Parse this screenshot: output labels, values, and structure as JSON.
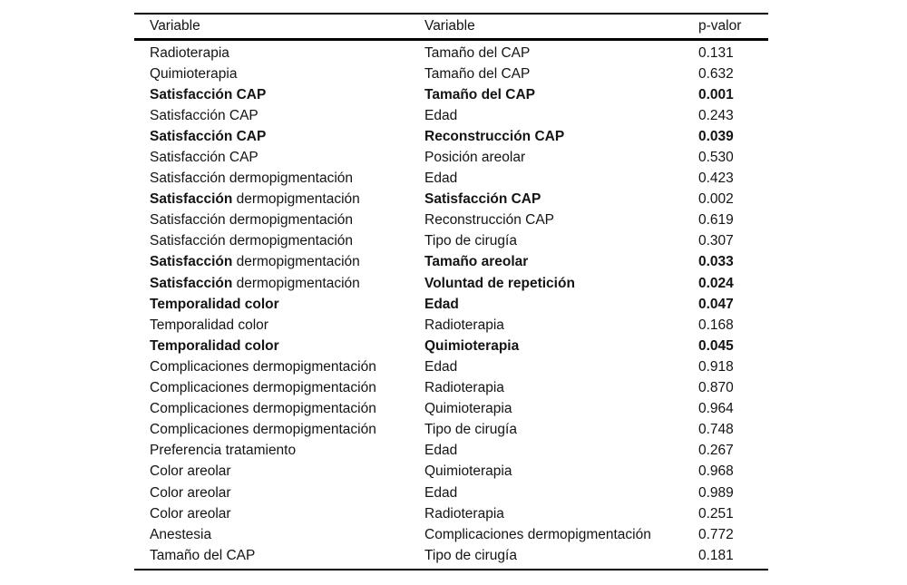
{
  "table": {
    "headers": [
      "Variable",
      "Variable",
      "p-valor"
    ],
    "rows": [
      {
        "col1": [
          [
            "Radioterapia",
            false
          ]
        ],
        "col2": [
          [
            "Tamaño del CAP",
            false
          ]
        ],
        "p": [
          [
            "0.131",
            false
          ]
        ]
      },
      {
        "col1": [
          [
            "Quimioterapia",
            false
          ]
        ],
        "col2": [
          [
            "Tamaño del CAP",
            false
          ]
        ],
        "p": [
          [
            "0.632",
            false
          ]
        ]
      },
      {
        "col1": [
          [
            "Satisfacción CAP",
            true
          ]
        ],
        "col2": [
          [
            "Tamaño del CAP",
            true
          ]
        ],
        "p": [
          [
            "0.001",
            true
          ]
        ]
      },
      {
        "col1": [
          [
            "Satisfacción CAP",
            false
          ]
        ],
        "col2": [
          [
            "Edad",
            false
          ]
        ],
        "p": [
          [
            "0.243",
            false
          ]
        ]
      },
      {
        "col1": [
          [
            "Satisfacción CAP",
            true
          ]
        ],
        "col2": [
          [
            "Reconstrucción CAP",
            true
          ]
        ],
        "p": [
          [
            "0.039",
            true
          ]
        ]
      },
      {
        "col1": [
          [
            "Satisfacción CAP",
            false
          ]
        ],
        "col2": [
          [
            "Posición areolar",
            false
          ]
        ],
        "p": [
          [
            "0.530",
            false
          ]
        ]
      },
      {
        "col1": [
          [
            "Satisfacción dermopigmentación",
            false
          ]
        ],
        "col2": [
          [
            "Edad",
            false
          ]
        ],
        "p": [
          [
            "0.423",
            false
          ]
        ]
      },
      {
        "col1": [
          [
            "Satisfacción",
            true
          ],
          [
            " dermopigmentación",
            false
          ]
        ],
        "col2": [
          [
            "Satisfacción CAP",
            true
          ]
        ],
        "p": [
          [
            "0.002",
            false
          ]
        ]
      },
      {
        "col1": [
          [
            "Satisfacción dermopigmentación",
            false
          ]
        ],
        "col2": [
          [
            "Reconstrucción CAP",
            false
          ]
        ],
        "p": [
          [
            "0.619",
            false
          ]
        ]
      },
      {
        "col1": [
          [
            "Satisfacción dermopigmentación",
            false
          ]
        ],
        "col2": [
          [
            "Tipo de cirugía",
            false
          ]
        ],
        "p": [
          [
            "0.307",
            false
          ]
        ]
      },
      {
        "col1": [
          [
            "Satisfacción",
            true
          ],
          [
            " dermopigmentación",
            false
          ]
        ],
        "col2": [
          [
            "Tamaño areolar",
            true
          ]
        ],
        "p": [
          [
            "0.033",
            true
          ]
        ]
      },
      {
        "col1": [
          [
            "Satisfacción",
            true
          ],
          [
            " dermopigmentación",
            false
          ]
        ],
        "col2": [
          [
            "Voluntad de repetición",
            true
          ]
        ],
        "p": [
          [
            "0.024",
            true
          ]
        ]
      },
      {
        "col1": [
          [
            "Temporalidad color",
            true
          ]
        ],
        "col2": [
          [
            "Edad",
            true
          ]
        ],
        "p": [
          [
            "0.047",
            true
          ]
        ]
      },
      {
        "col1": [
          [
            "Temporalidad color",
            false
          ]
        ],
        "col2": [
          [
            "Radioterapia",
            false
          ]
        ],
        "p": [
          [
            "0.168",
            false
          ]
        ]
      },
      {
        "col1": [
          [
            "Temporalidad color",
            true
          ]
        ],
        "col2": [
          [
            "Quimioterapia",
            true
          ]
        ],
        "p": [
          [
            "0.045",
            true
          ]
        ]
      },
      {
        "col1": [
          [
            "Complicaciones dermopigmentación",
            false
          ]
        ],
        "col2": [
          [
            "Edad",
            false
          ]
        ],
        "p": [
          [
            "0.918",
            false
          ]
        ]
      },
      {
        "col1": [
          [
            "Complicaciones dermopigmentación",
            false
          ]
        ],
        "col2": [
          [
            "Radioterapia",
            false
          ]
        ],
        "p": [
          [
            "0.870",
            false
          ]
        ]
      },
      {
        "col1": [
          [
            "Complicaciones dermopigmentación",
            false
          ]
        ],
        "col2": [
          [
            "Quimioterapia",
            false
          ]
        ],
        "p": [
          [
            "0.964",
            false
          ]
        ]
      },
      {
        "col1": [
          [
            "Complicaciones dermopigmentación",
            false
          ]
        ],
        "col2": [
          [
            "Tipo de cirugía",
            false
          ]
        ],
        "p": [
          [
            "0.748",
            false
          ]
        ]
      },
      {
        "col1": [
          [
            "Preferencia tratamiento",
            false
          ]
        ],
        "col2": [
          [
            "Edad",
            false
          ]
        ],
        "p": [
          [
            "0.267",
            false
          ]
        ]
      },
      {
        "col1": [
          [
            "Color areolar",
            false
          ]
        ],
        "col2": [
          [
            "Quimioterapia",
            false
          ]
        ],
        "p": [
          [
            "0.968",
            false
          ]
        ]
      },
      {
        "col1": [
          [
            "Color areolar",
            false
          ]
        ],
        "col2": [
          [
            "Edad",
            false
          ]
        ],
        "p": [
          [
            "0.989",
            false
          ]
        ]
      },
      {
        "col1": [
          [
            "Color areolar",
            false
          ]
        ],
        "col2": [
          [
            "Radioterapia",
            false
          ]
        ],
        "p": [
          [
            "0.251",
            false
          ]
        ]
      },
      {
        "col1": [
          [
            "Anestesia",
            false
          ]
        ],
        "col2": [
          [
            "Complicaciones dermopigmentación",
            false
          ]
        ],
        "p": [
          [
            "0.772",
            false
          ]
        ]
      },
      {
        "col1": [
          [
            "Tamaño del CAP",
            false
          ]
        ],
        "col2": [
          [
            "Tipo de cirugía",
            false
          ]
        ],
        "p": [
          [
            "0.181",
            false
          ]
        ]
      }
    ]
  },
  "colors": {
    "background": "#ffffff",
    "text": "#141414",
    "rule": "#000000"
  }
}
